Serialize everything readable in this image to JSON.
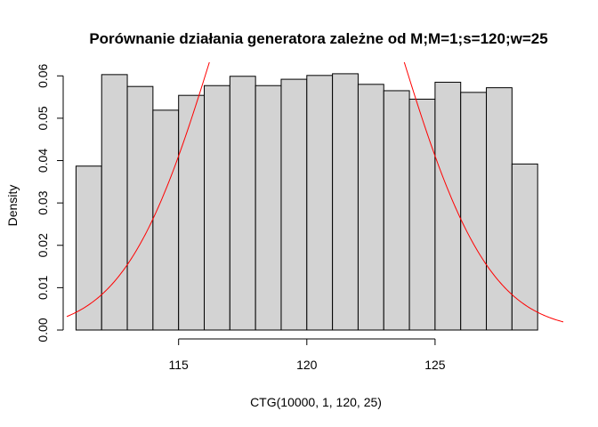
{
  "chart_data": {
    "type": "bar",
    "title": "Porównanie działania generatora zależne od M;M=1;s=120;w=25",
    "xlabel": "CTG(10000, 1, 120, 25)",
    "ylabel": "Density",
    "xlim": [
      110.5,
      130.0
    ],
    "ylim": [
      0,
      0.063
    ],
    "x_ticks": [
      115,
      120,
      125
    ],
    "y_ticks": [
      0.0,
      0.01,
      0.02,
      0.03,
      0.04,
      0.05,
      0.06
    ],
    "y_tick_labels": [
      "0.00",
      "0.01",
      "0.02",
      "0.03",
      "0.04",
      "0.05",
      "0.06"
    ],
    "bin_edges": [
      111,
      112,
      113,
      114,
      115,
      116,
      117,
      118,
      119,
      120,
      121,
      122,
      123,
      124,
      125,
      126,
      127,
      128,
      129
    ],
    "values": [
      0.0387,
      0.0603,
      0.0575,
      0.0519,
      0.0554,
      0.0577,
      0.0599,
      0.0577,
      0.0592,
      0.0601,
      0.0605,
      0.058,
      0.0565,
      0.0545,
      0.0585,
      0.0561,
      0.0572,
      0.0392
    ],
    "bar_color": "#d3d3d3",
    "series": [
      {
        "type": "line",
        "mean": 120,
        "sd": 3.5,
        "color": "#ff0000"
      }
    ],
    "grid": false,
    "legend": "none"
  }
}
